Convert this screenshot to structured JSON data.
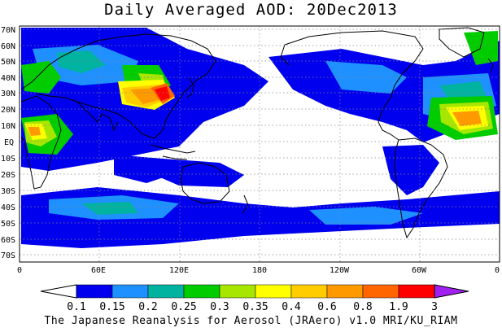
{
  "title": "Daily Averaged AOD: 20Dec2013",
  "credit": "The Japanese Reanalysis for Aerosol (JRAero) v1.0 MRI/KU_RIAM",
  "map": {
    "lat_labels": [
      "70N",
      "60N",
      "50N",
      "40N",
      "30N",
      "20N",
      "10N",
      "EQ",
      "10S",
      "20S",
      "30S",
      "40S",
      "50S",
      "60S",
      "70S"
    ],
    "lon_labels": [
      "0",
      "60E",
      "120E",
      "180",
      "120W",
      "60W",
      "0"
    ]
  },
  "colorbar": {
    "labels": [
      "0.1",
      "0.15",
      "0.2",
      "0.25",
      "0.3",
      "0.35",
      "0.4",
      "0.6",
      "0.8",
      "1.9",
      "3"
    ],
    "colors": [
      "#ffffff",
      "#0000ee",
      "#1e90ff",
      "#00b2a0",
      "#00cc00",
      "#a6e600",
      "#ffff00",
      "#ffcc00",
      "#ff9900",
      "#ff6600",
      "#ff0000",
      "#a020f0"
    ]
  }
}
